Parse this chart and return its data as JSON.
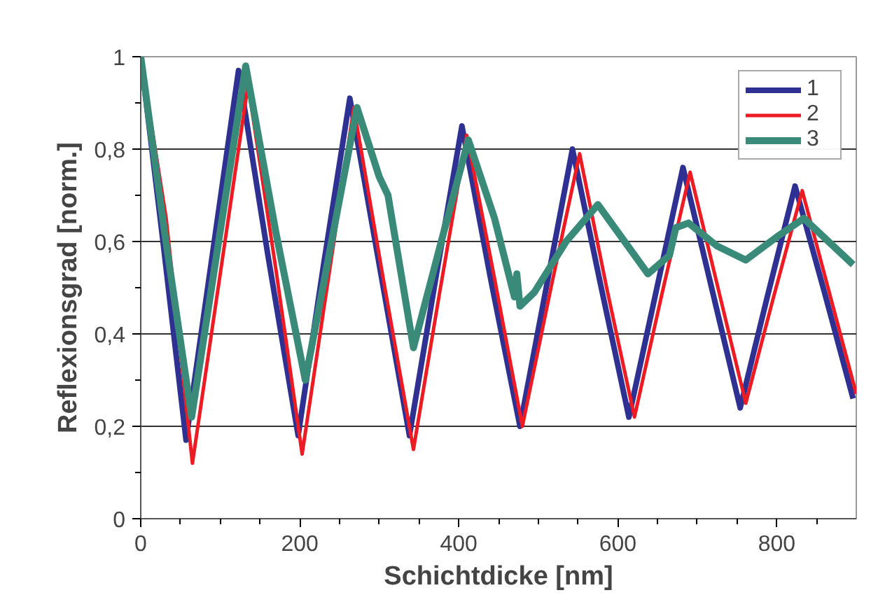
{
  "chart_data": {
    "type": "line",
    "xlabel": "Schichtdicke [nm]",
    "ylabel": "Reflexionsgrad [norm.]",
    "xlim": [
      0,
      900
    ],
    "ylim": [
      0,
      1
    ],
    "xticks": [
      0,
      {
        "value": 50,
        "label": null
      },
      {
        "value": 100,
        "label": null
      },
      {
        "value": 150,
        "label": null
      },
      200,
      {
        "value": 250,
        "label": null
      },
      {
        "value": 300,
        "label": null
      },
      {
        "value": 350,
        "label": null
      },
      400,
      {
        "value": 450,
        "label": null
      },
      {
        "value": 500,
        "label": null
      },
      {
        "value": 550,
        "label": null
      },
      600,
      {
        "value": 650,
        "label": null
      },
      {
        "value": 700,
        "label": null
      },
      {
        "value": 750,
        "label": null
      },
      800,
      {
        "value": 850,
        "label": null
      }
    ],
    "yticks": [
      0,
      {
        "value": 0.1,
        "label": null
      },
      {
        "value": 0.2,
        "label": "0,2"
      },
      {
        "value": 0.3,
        "label": null
      },
      {
        "value": 0.4,
        "label": "0,4"
      },
      {
        "value": 0.5,
        "label": null
      },
      {
        "value": 0.6,
        "label": "0,6"
      },
      {
        "value": 0.7,
        "label": null
      },
      {
        "value": 0.8,
        "label": "0,8"
      },
      {
        "value": 0.9,
        "label": null
      },
      1
    ],
    "grid": "y",
    "legend": "top right",
    "marker": "none",
    "line_style": "solid",
    "series": [
      {
        "name": "1",
        "color": "#2e3192",
        "x": [
          0,
          28,
          57,
          90,
          123,
          160,
          198,
          230,
          263,
          300,
          338,
          371,
          404,
          440,
          477,
          510,
          543,
          578,
          614,
          648,
          682,
          718,
          754,
          788,
          823,
          860,
          896
        ],
        "values": [
          1.0,
          0.6,
          0.17,
          0.57,
          0.97,
          0.57,
          0.18,
          0.55,
          0.91,
          0.55,
          0.18,
          0.52,
          0.85,
          0.52,
          0.2,
          0.5,
          0.8,
          0.51,
          0.22,
          0.49,
          0.76,
          0.5,
          0.24,
          0.48,
          0.72,
          0.49,
          0.26
        ]
      },
      {
        "name": "2",
        "color": "#ed1c24",
        "x": [
          0,
          32,
          65,
          100,
          135,
          170,
          203,
          236,
          268,
          305,
          343,
          376,
          410,
          445,
          480,
          516,
          552,
          586,
          621,
          656,
          691,
          726,
          761,
          796,
          832,
          866,
          900
        ],
        "values": [
          1.0,
          0.65,
          0.12,
          0.53,
          0.94,
          0.54,
          0.14,
          0.52,
          0.89,
          0.52,
          0.15,
          0.49,
          0.83,
          0.52,
          0.2,
          0.5,
          0.79,
          0.5,
          0.22,
          0.49,
          0.75,
          0.5,
          0.25,
          0.48,
          0.71,
          0.49,
          0.27
        ]
      },
      {
        "name": "3",
        "color": "#3a8a7a",
        "x": [
          0,
          30,
          64,
          98,
          132,
          170,
          207,
          240,
          272,
          300,
          311,
          343,
          378,
          412,
          445,
          470,
          473,
          477,
          495,
          535,
          575,
          638,
          665,
          673,
          689,
          725,
          761,
          800,
          834,
          896
        ],
        "values": [
          1.0,
          0.62,
          0.22,
          0.6,
          0.98,
          0.62,
          0.3,
          0.6,
          0.89,
          0.74,
          0.7,
          0.37,
          0.6,
          0.82,
          0.65,
          0.48,
          0.53,
          0.46,
          0.49,
          0.6,
          0.68,
          0.53,
          0.57,
          0.63,
          0.64,
          0.59,
          0.56,
          0.61,
          0.65,
          0.55
        ]
      }
    ]
  }
}
